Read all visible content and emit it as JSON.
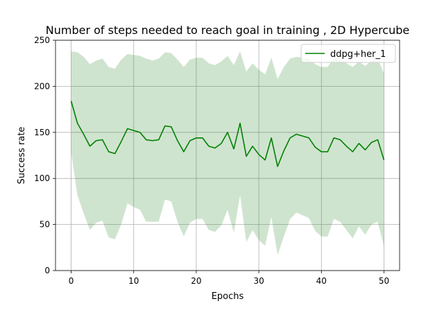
{
  "chart_data": {
    "type": "line",
    "title": "Number of steps needed to reach goal in training , 2D Hypercube",
    "xlabel": "Epochs",
    "ylabel": "Success rate",
    "xlim": [
      -2.5,
      52.5
    ],
    "ylim": [
      0,
      250
    ],
    "x_ticks": [
      0,
      10,
      20,
      30,
      40,
      50
    ],
    "y_ticks": [
      0,
      50,
      100,
      150,
      200,
      250
    ],
    "grid": true,
    "legend_position": "top-right",
    "series": [
      {
        "name": "ddpg+her_1",
        "color": "#008000",
        "band_color": "#2e8b2e",
        "x": [
          0,
          1,
          2,
          3,
          4,
          5,
          6,
          7,
          8,
          9,
          10,
          11,
          12,
          13,
          14,
          15,
          16,
          17,
          18,
          19,
          20,
          21,
          22,
          23,
          24,
          25,
          26,
          27,
          28,
          29,
          30,
          31,
          32,
          33,
          34,
          35,
          36,
          37,
          38,
          39,
          40,
          41,
          42,
          43,
          44,
          45,
          46,
          47,
          48,
          49,
          50
        ],
        "values": [
          184,
          160,
          148,
          135,
          141,
          142,
          129,
          127,
          140,
          154,
          152,
          150,
          142,
          141,
          142,
          157,
          156,
          141,
          129,
          141,
          144,
          144,
          135,
          133,
          138,
          150,
          132,
          160,
          124,
          135,
          126,
          120,
          144,
          113,
          130,
          144,
          148,
          146,
          144,
          134,
          129,
          129,
          144,
          142,
          135,
          129,
          138,
          131,
          139,
          142,
          120
        ],
        "upper": [
          238,
          237,
          232,
          224,
          228,
          230,
          221,
          219,
          229,
          235,
          234,
          233,
          230,
          228,
          230,
          237,
          236,
          229,
          221,
          229,
          231,
          231,
          225,
          223,
          227,
          233,
          223,
          238,
          216,
          225,
          218,
          213,
          231,
          208,
          221,
          230,
          232,
          231,
          230,
          224,
          221,
          221,
          231,
          230,
          225,
          221,
          227,
          222,
          228,
          230,
          214
        ],
        "lower": [
          128,
          82,
          62,
          44,
          52,
          54,
          36,
          34,
          50,
          73,
          69,
          66,
          53,
          53,
          53,
          77,
          75,
          53,
          37,
          52,
          56,
          56,
          44,
          42,
          49,
          66,
          41,
          82,
          31,
          44,
          33,
          27,
          58,
          17,
          37,
          56,
          63,
          60,
          57,
          43,
          37,
          37,
          56,
          53,
          44,
          35,
          48,
          39,
          50,
          53,
          26
        ]
      }
    ]
  }
}
